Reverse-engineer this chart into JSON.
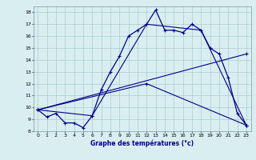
{
  "xlabel": "Graphe des températures (°c)",
  "background_color": "#d8eef0",
  "grid_color": "#aaccd0",
  "line_color": "#00008b",
  "xlim": [
    -0.5,
    23.5
  ],
  "ylim": [
    8,
    18.5
  ],
  "xticks": [
    0,
    1,
    2,
    3,
    4,
    5,
    6,
    7,
    8,
    9,
    10,
    11,
    12,
    13,
    14,
    15,
    16,
    17,
    18,
    19,
    20,
    21,
    22,
    23
  ],
  "yticks": [
    8,
    9,
    10,
    11,
    12,
    13,
    14,
    15,
    16,
    17,
    18
  ],
  "series1_x": [
    0,
    1,
    2,
    3,
    4,
    5,
    6,
    7,
    8,
    9,
    10,
    11,
    12,
    13,
    14,
    15,
    16,
    17,
    18,
    19,
    20,
    21,
    22,
    23
  ],
  "series1_y": [
    9.8,
    9.2,
    9.5,
    8.7,
    8.7,
    8.3,
    9.3,
    11.5,
    13.0,
    14.3,
    16.0,
    16.5,
    17.0,
    18.2,
    16.5,
    16.5,
    16.3,
    17.0,
    16.5,
    15.0,
    14.5,
    12.5,
    9.5,
    8.5
  ],
  "series2_x": [
    0,
    6,
    12,
    18,
    23
  ],
  "series2_y": [
    9.8,
    9.3,
    17.0,
    16.5,
    8.5
  ],
  "series3_x": [
    0,
    12,
    23
  ],
  "series3_y": [
    9.8,
    12.0,
    8.5
  ],
  "series4_x": [
    0,
    23
  ],
  "series4_y": [
    9.8,
    14.5
  ]
}
